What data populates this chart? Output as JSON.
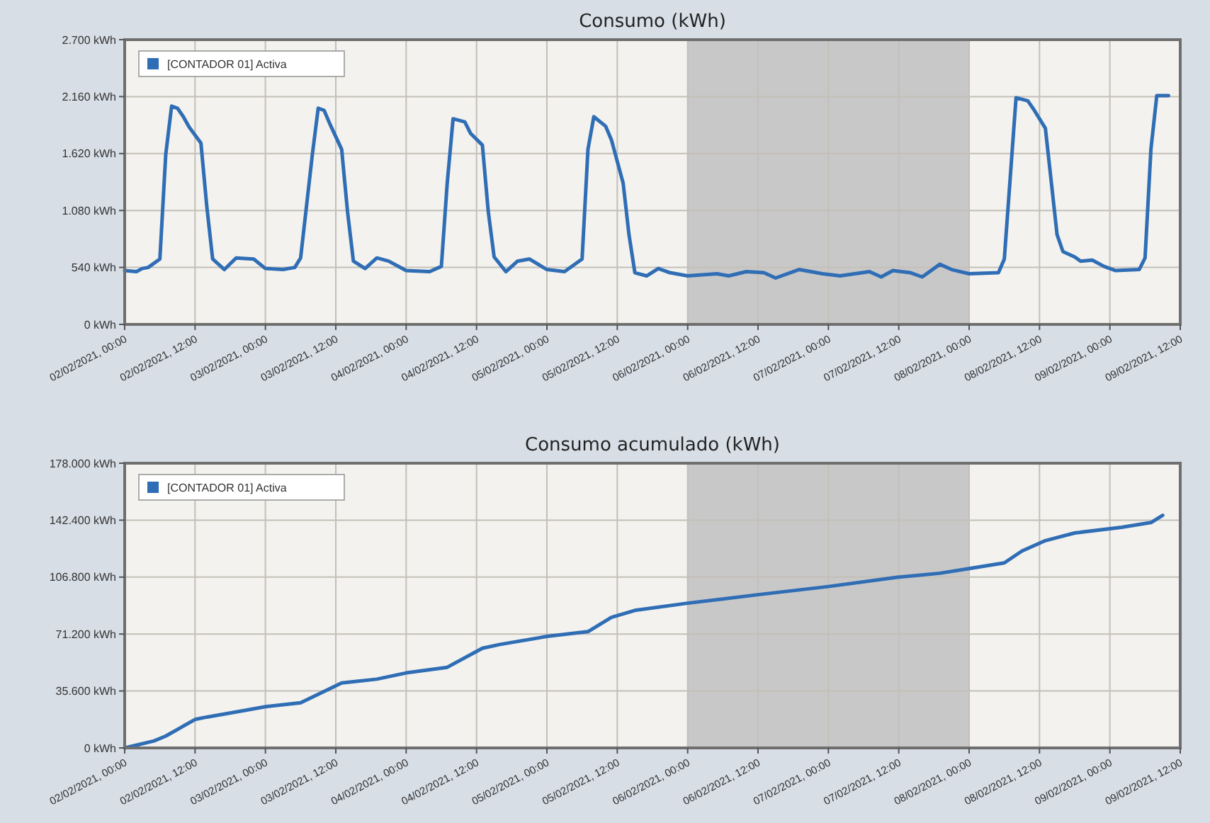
{
  "chart_data": [
    {
      "type": "line",
      "title": "Consumo (kWh)",
      "grid": true,
      "legend": "top left",
      "xlim": [
        "2021-02-02T00:00",
        "2021-02-09T12:00"
      ],
      "xticks": [
        {
          "value": "2021-02-02T00:00",
          "label": "02/02/2021, 00:00"
        },
        {
          "value": "2021-02-02T12:00",
          "label": "02/02/2021, 12:00"
        },
        {
          "value": "2021-02-03T00:00",
          "label": "03/02/2021, 00:00"
        },
        {
          "value": "2021-02-03T12:00",
          "label": "03/02/2021, 12:00"
        },
        {
          "value": "2021-02-04T00:00",
          "label": "04/02/2021, 00:00"
        },
        {
          "value": "2021-02-04T12:00",
          "label": "04/02/2021, 12:00"
        },
        {
          "value": "2021-02-05T00:00",
          "label": "05/02/2021, 00:00"
        },
        {
          "value": "2021-02-05T12:00",
          "label": "05/02/2021, 12:00"
        },
        {
          "value": "2021-02-06T00:00",
          "label": "06/02/2021, 00:00"
        },
        {
          "value": "2021-02-06T12:00",
          "label": "06/02/2021, 12:00"
        },
        {
          "value": "2021-02-07T00:00",
          "label": "07/02/2021, 00:00"
        },
        {
          "value": "2021-02-07T12:00",
          "label": "07/02/2021, 12:00"
        },
        {
          "value": "2021-02-08T00:00",
          "label": "08/02/2021, 00:00"
        },
        {
          "value": "2021-02-08T12:00",
          "label": "08/02/2021, 12:00"
        },
        {
          "value": "2021-02-09T00:00",
          "label": "09/02/2021, 00:00"
        },
        {
          "value": "2021-02-09T12:00",
          "label": "09/02/2021, 12:00"
        }
      ],
      "ylim": [
        0,
        2700
      ],
      "yticks": [
        {
          "value": 0,
          "label": "0 kWh"
        },
        {
          "value": 540,
          "label": "540 kWh"
        },
        {
          "value": 1080,
          "label": "1.080 kWh"
        },
        {
          "value": 1620,
          "label": "1.620 kWh"
        },
        {
          "value": 2160,
          "label": "2.160 kWh"
        },
        {
          "value": 2700,
          "label": "2.700 kWh"
        }
      ],
      "bands": [
        {
          "axis": "x",
          "from": "2021-02-06T00:00",
          "to": "2021-02-08T00:00",
          "color": "#c8c8c8"
        }
      ],
      "x": [
        "2021-02-02T00:00",
        "2021-02-02T02:00",
        "2021-02-02T03:00",
        "2021-02-02T04:00",
        "2021-02-02T06:00",
        "2021-02-02T07:00",
        "2021-02-02T08:00",
        "2021-02-02T09:00",
        "2021-02-02T10:00",
        "2021-02-02T11:00",
        "2021-02-02T13:00",
        "2021-02-02T14:00",
        "2021-02-02T15:00",
        "2021-02-02T17:00",
        "2021-02-02T19:00",
        "2021-02-02T22:00",
        "2021-02-03T00:00",
        "2021-02-03T03:00",
        "2021-02-03T05:00",
        "2021-02-03T06:00",
        "2021-02-03T08:00",
        "2021-02-03T09:00",
        "2021-02-03T10:00",
        "2021-02-03T11:00",
        "2021-02-03T13:00",
        "2021-02-03T14:00",
        "2021-02-03T15:00",
        "2021-02-03T17:00",
        "2021-02-03T19:00",
        "2021-02-03T21:00",
        "2021-02-04T00:00",
        "2021-02-04T04:00",
        "2021-02-04T06:00",
        "2021-02-04T07:00",
        "2021-02-04T08:00",
        "2021-02-04T10:00",
        "2021-02-04T11:00",
        "2021-02-04T13:00",
        "2021-02-04T14:00",
        "2021-02-04T15:00",
        "2021-02-04T17:00",
        "2021-02-04T19:00",
        "2021-02-04T21:00",
        "2021-02-05T00:00",
        "2021-02-05T03:00",
        "2021-02-05T06:00",
        "2021-02-05T07:00",
        "2021-02-05T08:00",
        "2021-02-05T10:00",
        "2021-02-05T11:00",
        "2021-02-05T13:00",
        "2021-02-05T14:00",
        "2021-02-05T15:00",
        "2021-02-05T17:00",
        "2021-02-05T19:00",
        "2021-02-05T21:00",
        "2021-02-06T00:00",
        "2021-02-06T05:00",
        "2021-02-06T07:00",
        "2021-02-06T10:00",
        "2021-02-06T13:00",
        "2021-02-06T15:00",
        "2021-02-06T19:00",
        "2021-02-06T23:00",
        "2021-02-07T02:00",
        "2021-02-07T07:00",
        "2021-02-07T09:00",
        "2021-02-07T11:00",
        "2021-02-07T14:00",
        "2021-02-07T16:00",
        "2021-02-07T19:00",
        "2021-02-07T21:00",
        "2021-02-08T00:00",
        "2021-02-08T05:00",
        "2021-02-08T06:00",
        "2021-02-08T08:00",
        "2021-02-08T10:00",
        "2021-02-08T11:00",
        "2021-02-08T13:00",
        "2021-02-08T15:00",
        "2021-02-08T16:00",
        "2021-02-08T18:00",
        "2021-02-08T19:00",
        "2021-02-08T21:00",
        "2021-02-08T23:00",
        "2021-02-09T01:00",
        "2021-02-09T05:00",
        "2021-02-09T06:00",
        "2021-02-09T07:00",
        "2021-02-09T08:00",
        "2021-02-09T09:00",
        "2021-02-09T10:00"
      ],
      "series": [
        {
          "name": "[CONTADOR 01] Activa",
          "color": "#2f6db5",
          "values": [
            510,
            500,
            530,
            540,
            620,
            1610,
            2070,
            2050,
            1970,
            1870,
            1720,
            1120,
            620,
            520,
            630,
            620,
            530,
            520,
            540,
            630,
            1610,
            2050,
            2030,
            1900,
            1660,
            1070,
            600,
            530,
            630,
            600,
            510,
            500,
            550,
            1340,
            1950,
            1920,
            1810,
            1700,
            1070,
            640,
            500,
            600,
            620,
            520,
            500,
            620,
            1660,
            1970,
            1880,
            1750,
            1340,
            850,
            490,
            460,
            530,
            490,
            460,
            480,
            460,
            500,
            490,
            440,
            520,
            480,
            460,
            500,
            450,
            510,
            490,
            450,
            570,
            520,
            480,
            490,
            620,
            2150,
            2120,
            2040,
            1860,
            850,
            690,
            640,
            600,
            610,
            550,
            510,
            520,
            630,
            1660,
            2170,
            2170,
            2170
          ]
        }
      ]
    },
    {
      "type": "line",
      "title": "Consumo acumulado (kWh)",
      "grid": true,
      "legend": "top left",
      "xlim": [
        "2021-02-02T00:00",
        "2021-02-09T12:00"
      ],
      "xticks": [
        {
          "value": "2021-02-02T00:00",
          "label": "02/02/2021, 00:00"
        },
        {
          "value": "2021-02-02T12:00",
          "label": "02/02/2021, 12:00"
        },
        {
          "value": "2021-02-03T00:00",
          "label": "03/02/2021, 00:00"
        },
        {
          "value": "2021-02-03T12:00",
          "label": "03/02/2021, 12:00"
        },
        {
          "value": "2021-02-04T00:00",
          "label": "04/02/2021, 00:00"
        },
        {
          "value": "2021-02-04T12:00",
          "label": "04/02/2021, 12:00"
        },
        {
          "value": "2021-02-05T00:00",
          "label": "05/02/2021, 00:00"
        },
        {
          "value": "2021-02-05T12:00",
          "label": "05/02/2021, 12:00"
        },
        {
          "value": "2021-02-06T00:00",
          "label": "06/02/2021, 00:00"
        },
        {
          "value": "2021-02-06T12:00",
          "label": "06/02/2021, 12:00"
        },
        {
          "value": "2021-02-07T00:00",
          "label": "07/02/2021, 00:00"
        },
        {
          "value": "2021-02-07T12:00",
          "label": "07/02/2021, 12:00"
        },
        {
          "value": "2021-02-08T00:00",
          "label": "08/02/2021, 00:00"
        },
        {
          "value": "2021-02-08T12:00",
          "label": "08/02/2021, 12:00"
        },
        {
          "value": "2021-02-09T00:00",
          "label": "09/02/2021, 00:00"
        },
        {
          "value": "2021-02-09T12:00",
          "label": "09/02/2021, 12:00"
        }
      ],
      "ylim": [
        0,
        178000
      ],
      "yticks": [
        {
          "value": 0,
          "label": "0 kWh"
        },
        {
          "value": 35600,
          "label": "35.600 kWh"
        },
        {
          "value": 71200,
          "label": "71.200 kWh"
        },
        {
          "value": 106800,
          "label": "106.800 kWh"
        },
        {
          "value": 142400,
          "label": "142.400 kWh"
        },
        {
          "value": 178000,
          "label": "178.000 kWh"
        }
      ],
      "bands": [
        {
          "axis": "x",
          "from": "2021-02-06T00:00",
          "to": "2021-02-08T00:00",
          "color": "#c8c8c8"
        }
      ],
      "x": [
        "2021-02-02T00:00",
        "2021-02-02T05:00",
        "2021-02-02T07:00",
        "2021-02-02T12:00",
        "2021-02-02T14:00",
        "2021-02-02T20:00",
        "2021-02-03T00:00",
        "2021-02-03T06:00",
        "2021-02-03T11:00",
        "2021-02-03T13:00",
        "2021-02-03T19:00",
        "2021-02-04T00:00",
        "2021-02-04T07:00",
        "2021-02-04T13:00",
        "2021-02-04T16:00",
        "2021-02-05T00:00",
        "2021-02-05T07:00",
        "2021-02-05T11:00",
        "2021-02-05T15:00",
        "2021-02-06T00:00",
        "2021-02-06T12:00",
        "2021-02-07T00:00",
        "2021-02-07T12:00",
        "2021-02-07T19:00",
        "2021-02-08T00:00",
        "2021-02-08T06:00",
        "2021-02-08T09:00",
        "2021-02-08T13:00",
        "2021-02-08T18:00",
        "2021-02-09T02:00",
        "2021-02-09T07:00",
        "2021-02-09T09:00"
      ],
      "series": [
        {
          "name": "[CONTADOR 01] Activa",
          "color": "#2f6db5",
          "values": [
            0,
            4400,
            7400,
            17800,
            19300,
            23100,
            25800,
            28200,
            37100,
            40600,
            43000,
            46900,
            50400,
            62300,
            64700,
            69700,
            72700,
            81600,
            86000,
            90500,
            95800,
            100900,
            106800,
            109200,
            112100,
            115700,
            123100,
            129600,
            134400,
            137900,
            140900,
            145400
          ]
        }
      ]
    }
  ]
}
